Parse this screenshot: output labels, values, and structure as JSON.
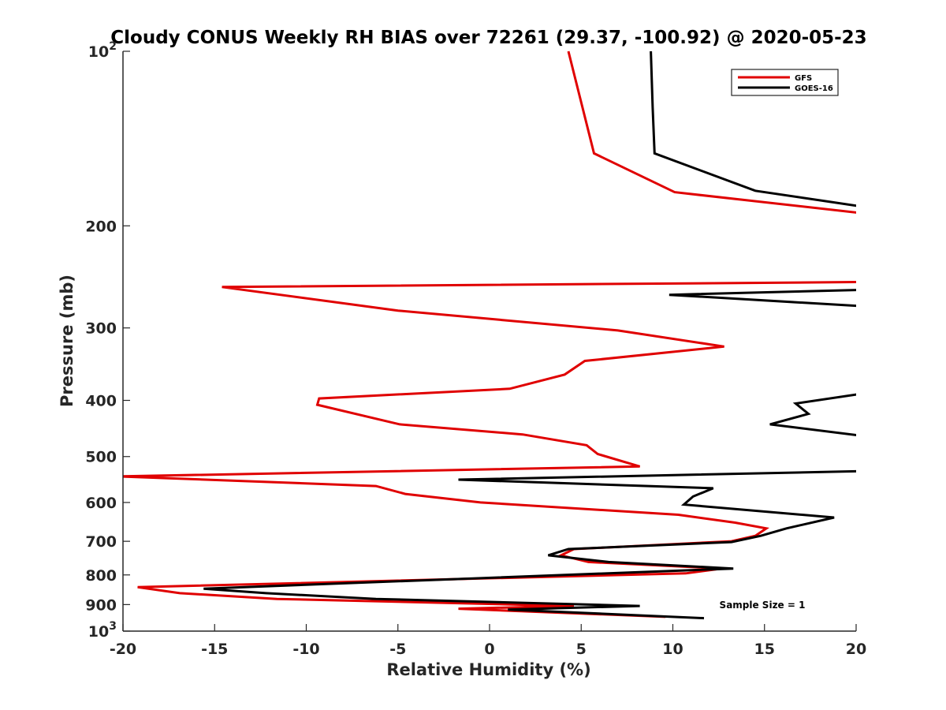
{
  "chart_data": {
    "type": "line",
    "title": "Cloudy CONUS Weekly RH BIAS over 72261 (29.37, -100.92) @ 2020-05-23",
    "xlabel": "Relative Humidity (%)",
    "ylabel": "Pressure (mb)",
    "xlim": [
      -20,
      20
    ],
    "ylim": [
      100,
      1000
    ],
    "yscale": "log",
    "yreversed": true,
    "xticks": [
      "-20",
      "-15",
      "-10",
      "-5",
      "0",
      "5",
      "10",
      "15",
      "20"
    ],
    "yticks": [
      {
        "value": 100,
        "base": "10",
        "exp": "2"
      },
      {
        "value": 200,
        "label": "200"
      },
      {
        "value": 300,
        "label": "300"
      },
      {
        "value": 400,
        "label": "400"
      },
      {
        "value": 500,
        "label": "500"
      },
      {
        "value": 600,
        "label": "600"
      },
      {
        "value": 700,
        "label": "700"
      },
      {
        "value": 800,
        "label": "800"
      },
      {
        "value": 900,
        "label": "900"
      },
      {
        "value": 1000,
        "base": "10",
        "exp": "3"
      }
    ],
    "grid": false,
    "legend_position": "top-right",
    "annotation": "Sample Size = 1",
    "series": [
      {
        "name": "GFS",
        "color": "#e00000",
        "points": [
          [
            4.3,
            100
          ],
          [
            5.7,
            150
          ],
          [
            10.1,
            175
          ],
          [
            20.2,
            190
          ],
          [
            null,
            null
          ],
          [
            20.2,
            250
          ],
          [
            -14.6,
            255
          ],
          [
            -5,
            280
          ],
          [
            7,
            303
          ],
          [
            12.8,
            323
          ],
          [
            5.2,
            342
          ],
          [
            4.1,
            361
          ],
          [
            1.1,
            382
          ],
          [
            -9.3,
            397
          ],
          [
            -9.4,
            407
          ],
          [
            -4.9,
            440
          ],
          [
            1.8,
            458
          ],
          [
            5.3,
            478
          ],
          [
            5.9,
            495
          ],
          [
            8.2,
            520
          ],
          [
            -20.2,
            541
          ],
          [
            -6.2,
            562
          ],
          [
            -4.6,
            580
          ],
          [
            -0.5,
            600
          ],
          [
            10.3,
            630
          ],
          [
            13.4,
            650
          ],
          [
            15.1,
            665
          ],
          [
            14.5,
            685
          ],
          [
            13.2,
            700
          ],
          [
            4.6,
            722
          ],
          [
            3.9,
            740
          ],
          [
            5.4,
            760
          ],
          [
            12.7,
            780
          ],
          [
            10.7,
            795
          ],
          [
            -19.2,
            840
          ],
          [
            -16.9,
            860
          ],
          [
            -11.6,
            880
          ],
          [
            4.6,
            905
          ],
          [
            -1.7,
            915
          ],
          [
            9.6,
            945
          ]
        ]
      },
      {
        "name": "GOES-16",
        "color": "#000000",
        "points": [
          [
            8.8,
            100
          ],
          [
            8.9,
            125
          ],
          [
            9.0,
            150
          ],
          [
            14.5,
            174
          ],
          [
            20.2,
            185
          ],
          [
            null,
            null
          ],
          [
            20.2,
            258
          ],
          [
            9.8,
            263
          ],
          [
            20.2,
            275
          ],
          [
            null,
            null
          ],
          [
            20.2,
            390
          ],
          [
            16.7,
            405
          ],
          [
            17.4,
            422
          ],
          [
            15.3,
            440
          ],
          [
            20.2,
            460
          ],
          [
            null,
            null
          ],
          [
            20.2,
            530
          ],
          [
            -1.7,
            548
          ],
          [
            12.2,
            567
          ],
          [
            11.1,
            586
          ],
          [
            10.6,
            605
          ],
          [
            18.8,
            637
          ],
          [
            16.2,
            665
          ],
          [
            14.8,
            685
          ],
          [
            13.2,
            702
          ],
          [
            4.3,
            722
          ],
          [
            3.2,
            740
          ],
          [
            6.5,
            760
          ],
          [
            13.3,
            780
          ],
          [
            -15.6,
            845
          ],
          [
            -12.2,
            860
          ],
          [
            -6.2,
            880
          ],
          [
            8.2,
            905
          ],
          [
            1.0,
            918
          ],
          [
            11.7,
            950
          ]
        ]
      }
    ]
  }
}
